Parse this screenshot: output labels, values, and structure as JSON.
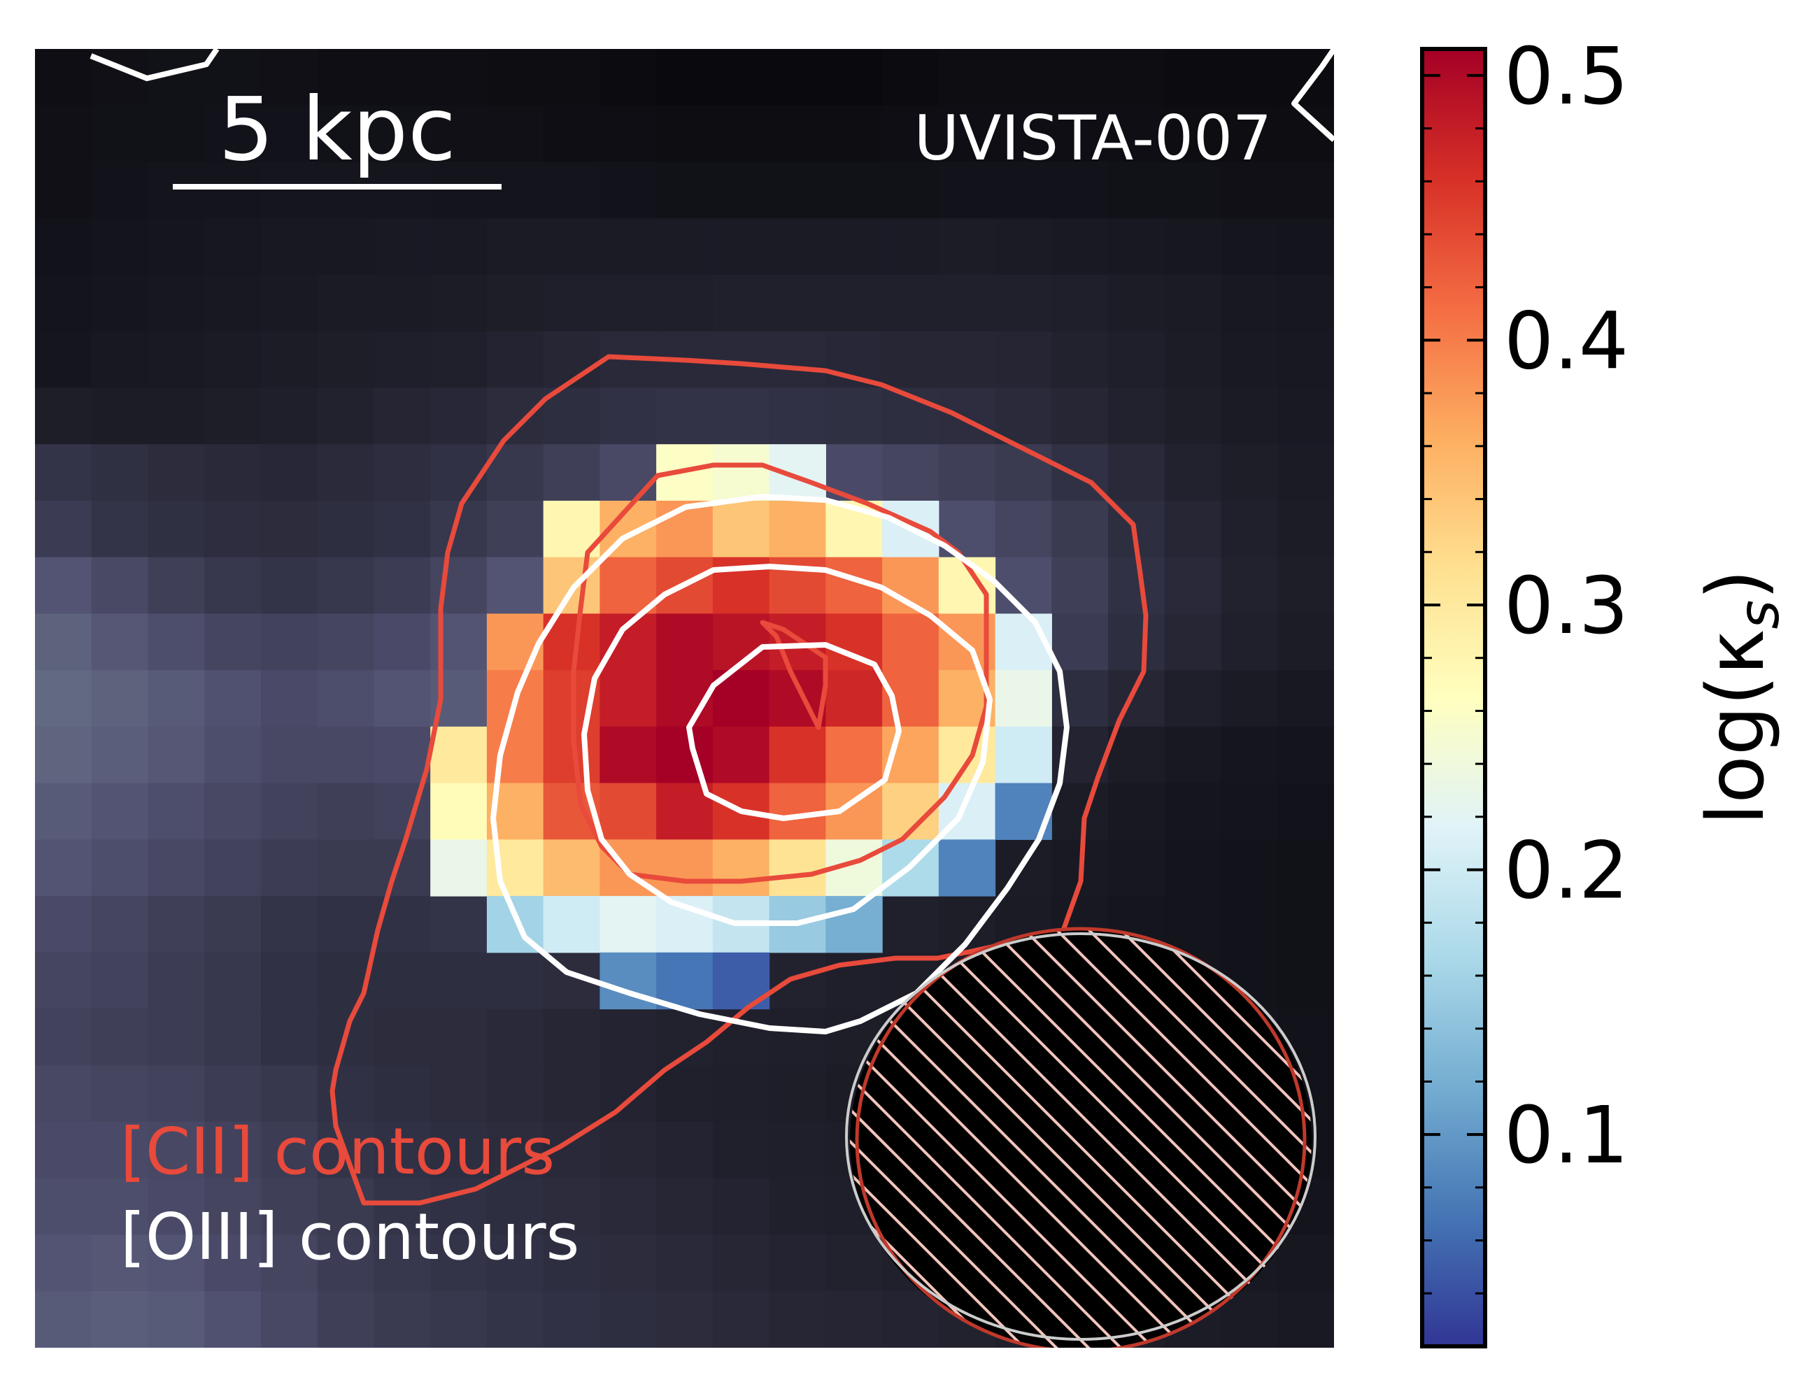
{
  "chart_data": {
    "type": "heatmap",
    "title": "UVISTA-007",
    "scalebar_label": "5 kpc",
    "legend": {
      "cii_label": "[CII] contours",
      "oiii_label": "[OIII] contours"
    },
    "colorbar": {
      "label": "log(κ",
      "label_sub": "s",
      "label_close": ")",
      "range": [
        0.02,
        0.51
      ],
      "ticks": [
        0.1,
        0.2,
        0.3,
        0.4,
        0.5
      ],
      "tick_labels": [
        "0.1",
        "0.2",
        "0.3",
        "0.4",
        "0.5"
      ],
      "colors": [
        "#313695",
        "#4575b4",
        "#74add1",
        "#abd9e9",
        "#e0f3f8",
        "#ffffbf",
        "#fee090",
        "#fdae61",
        "#f46d43",
        "#d73027",
        "#a50026"
      ]
    },
    "grid_size": 23,
    "background": [
      [
        3,
        4,
        5,
        5,
        4,
        3,
        3,
        3,
        2,
        2,
        1,
        0,
        0,
        0,
        0,
        1,
        2,
        2,
        2,
        2,
        1,
        1,
        1
      ],
      [
        4,
        5,
        5,
        6,
        6,
        5,
        5,
        4,
        4,
        3,
        3,
        2,
        2,
        2,
        2,
        3,
        3,
        3,
        3,
        3,
        2,
        2,
        2
      ],
      [
        4,
        6,
        7,
        7,
        8,
        8,
        8,
        7,
        7,
        7,
        6,
        5,
        5,
        5,
        5,
        5,
        6,
        6,
        6,
        5,
        5,
        4,
        4
      ],
      [
        6,
        7,
        8,
        9,
        10,
        10,
        11,
        11,
        12,
        12,
        12,
        12,
        12,
        12,
        12,
        12,
        13,
        12,
        11,
        10,
        9,
        8,
        7
      ],
      [
        7,
        8,
        9,
        10,
        11,
        12,
        12,
        13,
        14,
        15,
        15,
        15,
        16,
        16,
        16,
        16,
        16,
        16,
        15,
        13,
        12,
        10,
        9
      ],
      [
        8,
        10,
        11,
        12,
        13,
        14,
        15,
        16,
        18,
        20,
        22,
        22,
        22,
        22,
        21,
        20,
        20,
        19,
        17,
        15,
        13,
        11,
        10
      ],
      [
        14,
        13,
        13,
        14,
        15,
        17,
        19,
        21,
        24,
        26,
        28,
        29,
        29,
        28,
        27,
        26,
        25,
        23,
        20,
        17,
        14,
        12,
        11
      ],
      [
        30,
        27,
        24,
        22,
        21,
        23,
        25,
        28,
        32,
        38,
        45,
        50,
        52,
        50,
        46,
        42,
        38,
        34,
        28,
        22,
        17,
        14,
        12
      ],
      [
        35,
        30,
        27,
        25,
        24,
        26,
        28,
        32,
        38,
        46,
        56,
        62,
        64,
        60,
        56,
        52,
        48,
        42,
        34,
        26,
        20,
        16,
        13
      ],
      [
        52,
        45,
        38,
        32,
        30,
        32,
        36,
        42,
        52,
        60,
        68,
        70,
        70,
        68,
        64,
        60,
        56,
        48,
        38,
        28,
        22,
        17,
        14
      ],
      [
        60,
        54,
        48,
        42,
        40,
        42,
        46,
        52,
        60,
        64,
        66,
        68,
        68,
        66,
        62,
        58,
        52,
        44,
        35,
        26,
        20,
        16,
        13
      ],
      [
        64,
        60,
        56,
        50,
        46,
        48,
        52,
        56,
        60,
        60,
        60,
        60,
        60,
        58,
        54,
        48,
        42,
        34,
        26,
        20,
        15,
        12,
        10
      ],
      [
        62,
        58,
        54,
        48,
        44,
        44,
        46,
        50,
        52,
        52,
        52,
        50,
        48,
        46,
        42,
        36,
        30,
        24,
        18,
        13,
        10,
        8,
        7
      ],
      [
        56,
        52,
        48,
        44,
        40,
        38,
        40,
        42,
        44,
        42,
        40,
        38,
        36,
        34,
        30,
        26,
        22,
        17,
        13,
        10,
        8,
        7,
        6
      ],
      [
        52,
        48,
        44,
        40,
        36,
        34,
        34,
        36,
        38,
        34,
        32,
        30,
        28,
        26,
        22,
        19,
        16,
        13,
        11,
        9,
        7,
        6,
        5
      ],
      [
        46,
        42,
        38,
        34,
        30,
        28,
        28,
        30,
        30,
        28,
        26,
        24,
        22,
        20,
        18,
        16,
        14,
        12,
        10,
        8,
        7,
        6,
        5
      ],
      [
        42,
        40,
        36,
        32,
        28,
        26,
        26,
        26,
        26,
        24,
        22,
        20,
        18,
        17,
        15,
        14,
        12,
        11,
        10,
        8,
        7,
        6,
        5
      ],
      [
        40,
        38,
        36,
        32,
        28,
        26,
        24,
        24,
        22,
        20,
        18,
        17,
        16,
        15,
        14,
        13,
        12,
        11,
        10,
        9,
        8,
        7,
        6
      ],
      [
        44,
        42,
        40,
        36,
        32,
        28,
        26,
        24,
        22,
        20,
        18,
        16,
        15,
        14,
        13,
        12,
        11,
        10,
        9,
        8,
        7,
        6,
        6
      ],
      [
        46,
        46,
        44,
        40,
        36,
        30,
        28,
        26,
        24,
        22,
        20,
        18,
        16,
        15,
        14,
        13,
        12,
        11,
        10,
        9,
        8,
        7,
        6
      ],
      [
        48,
        48,
        46,
        42,
        38,
        34,
        30,
        28,
        26,
        24,
        22,
        20,
        18,
        16,
        15,
        14,
        13,
        12,
        11,
        10,
        9,
        8,
        7
      ],
      [
        52,
        54,
        52,
        46,
        42,
        36,
        32,
        30,
        28,
        26,
        24,
        22,
        20,
        18,
        17,
        16,
        15,
        14,
        13,
        12,
        11,
        10,
        9
      ],
      [
        56,
        58,
        56,
        50,
        44,
        38,
        34,
        32,
        30,
        28,
        26,
        24,
        22,
        20,
        19,
        18,
        17,
        16,
        15,
        14,
        13,
        12,
        11
      ]
    ],
    "kappa_map": [
      [
        null,
        null,
        null,
        null,
        null,
        null,
        null,
        null,
        null,
        null,
        null,
        null,
        null,
        null,
        null,
        null,
        null,
        null,
        null,
        null,
        null,
        null,
        null
      ],
      [
        null,
        null,
        null,
        null,
        null,
        null,
        null,
        null,
        null,
        null,
        null,
        null,
        null,
        null,
        null,
        null,
        null,
        null,
        null,
        null,
        null,
        null,
        null
      ],
      [
        null,
        null,
        null,
        null,
        null,
        null,
        null,
        null,
        null,
        null,
        null,
        null,
        null,
        null,
        null,
        null,
        null,
        null,
        null,
        null,
        null,
        null,
        null
      ],
      [
        null,
        null,
        null,
        null,
        null,
        null,
        null,
        null,
        null,
        null,
        null,
        null,
        null,
        null,
        null,
        null,
        null,
        null,
        null,
        null,
        null,
        null,
        null
      ],
      [
        null,
        null,
        null,
        null,
        null,
        null,
        null,
        null,
        null,
        null,
        null,
        null,
        null,
        null,
        null,
        null,
        null,
        null,
        null,
        null,
        null,
        null,
        null
      ],
      [
        null,
        null,
        null,
        null,
        null,
        null,
        null,
        null,
        null,
        null,
        null,
        null,
        null,
        null,
        null,
        null,
        null,
        null,
        null,
        null,
        null,
        null,
        null
      ],
      [
        null,
        null,
        null,
        null,
        null,
        null,
        null,
        null,
        null,
        null,
        null,
        null,
        null,
        null,
        null,
        null,
        null,
        null,
        null,
        null,
        null,
        null,
        null
      ],
      [
        null,
        null,
        null,
        null,
        null,
        null,
        null,
        null,
        null,
        null,
        null,
        0.26,
        0.25,
        0.22,
        null,
        null,
        null,
        null,
        null,
        null,
        null,
        null,
        null
      ],
      [
        null,
        null,
        null,
        null,
        null,
        null,
        null,
        null,
        null,
        0.28,
        0.36,
        0.38,
        0.34,
        0.36,
        0.28,
        0.21,
        null,
        null,
        null,
        null,
        null,
        null,
        null
      ],
      [
        null,
        null,
        null,
        null,
        null,
        null,
        null,
        null,
        null,
        0.34,
        0.42,
        0.44,
        0.46,
        0.44,
        0.42,
        0.38,
        0.28,
        null,
        null,
        null,
        null,
        null,
        null
      ],
      [
        null,
        null,
        null,
        null,
        null,
        null,
        null,
        null,
        0.38,
        0.46,
        0.48,
        0.5,
        0.49,
        0.48,
        0.46,
        0.42,
        0.38,
        0.21,
        null,
        null,
        null,
        null,
        null
      ],
      [
        null,
        null,
        null,
        null,
        null,
        null,
        null,
        null,
        0.4,
        0.45,
        0.48,
        0.5,
        0.51,
        0.5,
        0.47,
        0.42,
        0.36,
        0.23,
        null,
        null,
        null,
        null,
        null
      ],
      [
        null,
        null,
        null,
        null,
        null,
        null,
        null,
        0.3,
        0.4,
        0.45,
        0.5,
        0.51,
        0.5,
        0.46,
        0.41,
        0.37,
        0.3,
        0.2,
        null,
        null,
        null,
        null,
        null
      ],
      [
        null,
        null,
        null,
        null,
        null,
        null,
        null,
        0.27,
        0.36,
        0.43,
        0.44,
        0.48,
        0.46,
        0.42,
        0.38,
        0.33,
        0.21,
        0.08,
        null,
        null,
        null,
        null,
        null
      ],
      [
        null,
        null,
        null,
        null,
        null,
        null,
        null,
        0.23,
        0.3,
        0.35,
        0.38,
        0.38,
        0.36,
        0.31,
        0.24,
        0.17,
        0.08,
        null,
        null,
        null,
        null,
        null,
        null
      ],
      [
        null,
        null,
        null,
        null,
        null,
        null,
        null,
        null,
        0.16,
        0.2,
        0.22,
        0.21,
        0.19,
        0.15,
        0.12,
        null,
        null,
        null,
        null,
        null,
        null,
        null,
        null
      ],
      [
        null,
        null,
        null,
        null,
        null,
        null,
        null,
        null,
        null,
        null,
        0.09,
        0.07,
        0.05,
        null,
        null,
        null,
        null,
        null,
        null,
        null,
        null,
        null,
        null
      ],
      [
        null,
        null,
        null,
        null,
        null,
        null,
        null,
        null,
        null,
        null,
        null,
        null,
        null,
        null,
        null,
        null,
        null,
        null,
        null,
        null,
        null,
        null,
        null
      ],
      [
        null,
        null,
        null,
        null,
        null,
        null,
        null,
        null,
        null,
        null,
        null,
        null,
        null,
        null,
        null,
        null,
        null,
        null,
        null,
        null,
        null,
        null,
        null
      ],
      [
        null,
        null,
        null,
        null,
        null,
        null,
        null,
        null,
        null,
        null,
        null,
        null,
        null,
        null,
        null,
        null,
        null,
        null,
        null,
        null,
        null,
        null,
        null
      ],
      [
        null,
        null,
        null,
        null,
        null,
        null,
        null,
        null,
        null,
        null,
        null,
        null,
        null,
        null,
        null,
        null,
        null,
        null,
        null,
        null,
        null,
        null,
        null
      ],
      [
        null,
        null,
        null,
        null,
        null,
        null,
        null,
        null,
        null,
        null,
        null,
        null,
        null,
        null,
        null,
        null,
        null,
        null,
        null,
        null,
        null,
        null,
        null
      ],
      [
        null,
        null,
        null,
        null,
        null,
        null,
        null,
        null,
        null,
        null,
        null,
        null,
        null,
        null,
        null,
        null,
        null,
        null,
        null,
        null,
        null,
        null,
        null
      ]
    ]
  },
  "colors": {
    "cii": "#e84a3b",
    "oiii": "#ffffff",
    "beam_cii": "#c0392b",
    "beam_oiii": "#cccccc"
  }
}
